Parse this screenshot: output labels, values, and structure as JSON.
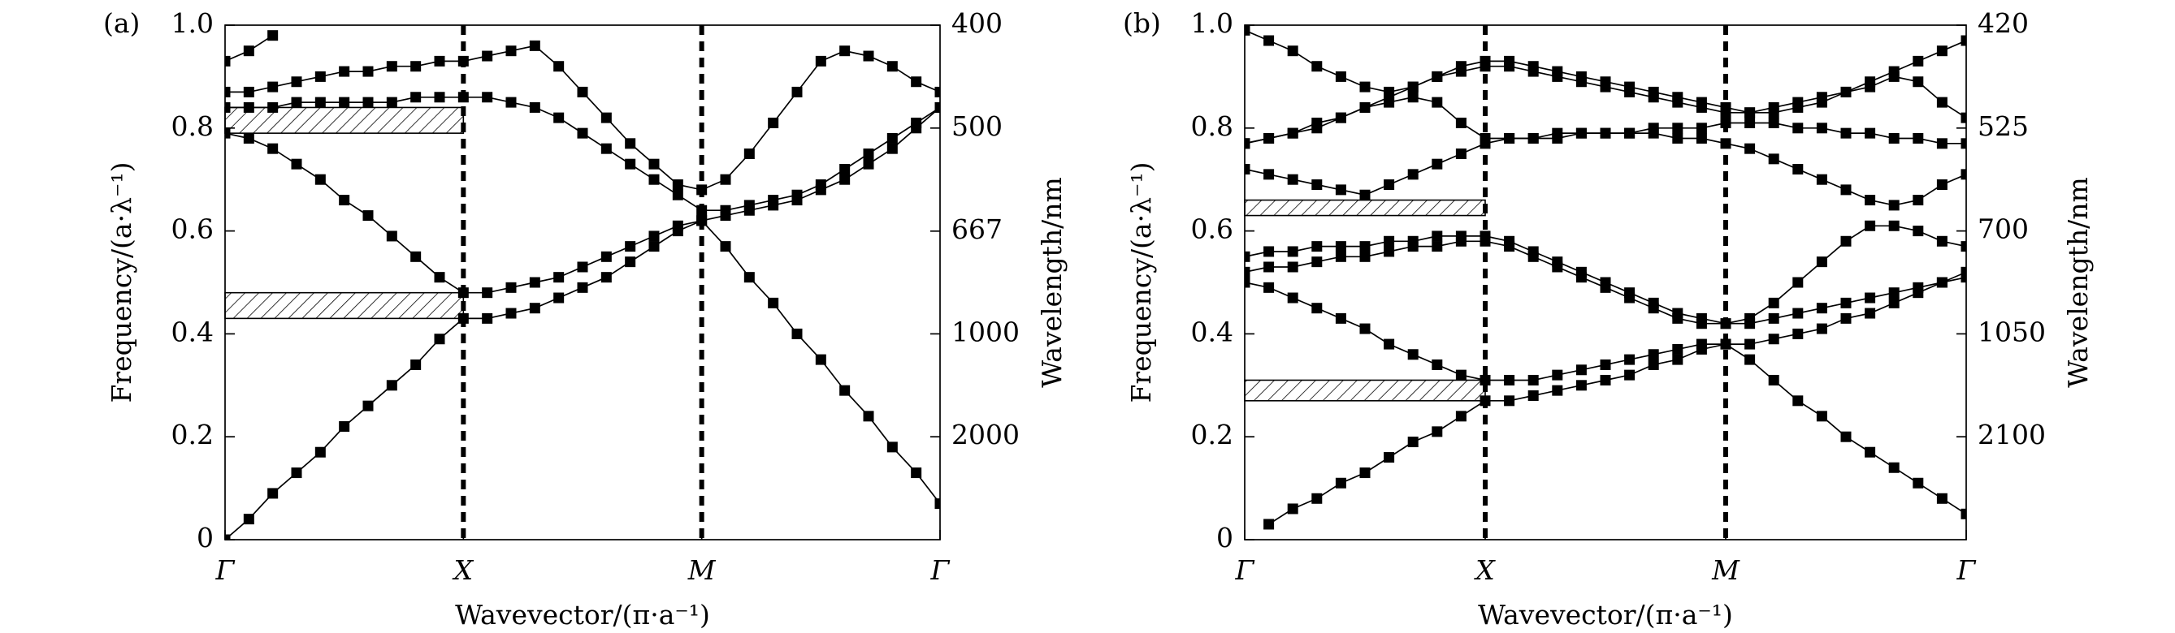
{
  "chart_data": [
    {
      "type": "line",
      "label": "(a)",
      "markers": "square",
      "xlabel": "Wavevector/(π·a⁻¹)",
      "ylabel": "Frequency/(a·λ⁻¹)",
      "y2label": "Wavelength/nm",
      "x": [
        0,
        0.1,
        0.2,
        0.3,
        0.4,
        0.5,
        0.6,
        0.7,
        0.8,
        0.9,
        1.0,
        1.1,
        1.2,
        1.3,
        1.4,
        1.5,
        1.6,
        1.7,
        1.8,
        1.9,
        2.0,
        2.1,
        2.2,
        2.3,
        2.4,
        2.5,
        2.6,
        2.7,
        2.8,
        2.9,
        3.0
      ],
      "xlim": [
        0,
        3
      ],
      "xticks": [
        {
          "value": 0,
          "label": "Γ"
        },
        {
          "value": 1,
          "label": "X"
        },
        {
          "value": 2,
          "label": "M"
        },
        {
          "value": 3,
          "label": "Γ"
        }
      ],
      "ylim": [
        0,
        1
      ],
      "yticks": [
        0,
        0.2,
        0.4,
        0.6,
        0.8,
        {
          "value": 1,
          "label": "1.0"
        }
      ],
      "y2_scale": "reciprocal",
      "y2lim": [
        null,
        400
      ],
      "y2ticks": [
        400,
        500,
        667,
        1000,
        2000
      ],
      "gaps": [
        [
          0.43,
          0.48
        ],
        [
          0.79,
          0.84
        ]
      ],
      "series": [
        {
          "color": "#000000",
          "values": [
            0,
            0.04,
            0.09,
            0.13,
            0.17,
            0.22,
            0.26,
            0.3,
            0.34,
            0.39,
            0.43,
            0.43,
            0.44,
            0.45,
            0.47,
            0.49,
            0.51,
            0.54,
            0.57,
            0.6,
            0.62,
            0.57,
            0.51,
            0.46,
            0.4,
            0.35,
            0.29,
            0.24,
            0.18,
            0.13,
            0.07
          ]
        },
        {
          "color": "#000000",
          "values": [
            0.79,
            0.78,
            0.76,
            0.73,
            0.7,
            0.66,
            0.63,
            0.59,
            0.55,
            0.51,
            0.48,
            0.48,
            0.49,
            0.5,
            0.51,
            0.53,
            0.55,
            0.57,
            0.59,
            0.61,
            0.62,
            0.63,
            0.64,
            0.65,
            0.66,
            0.68,
            0.7,
            0.73,
            0.76,
            0.8,
            0.84
          ]
        },
        {
          "color": "#000000",
          "values": [
            0.84,
            0.84,
            0.84,
            0.85,
            0.85,
            0.85,
            0.85,
            0.85,
            0.86,
            0.86,
            0.86,
            0.86,
            0.85,
            0.84,
            0.82,
            0.79,
            0.76,
            0.73,
            0.7,
            0.67,
            0.64,
            0.64,
            0.65,
            0.66,
            0.67,
            0.69,
            0.72,
            0.75,
            0.78,
            0.81,
            0.84
          ]
        },
        {
          "color": "#000000",
          "values": [
            0.87,
            0.87,
            0.88,
            0.89,
            0.9,
            0.91,
            0.91,
            0.92,
            0.92,
            0.93,
            0.93,
            0.94,
            0.95,
            0.96,
            0.92,
            0.87,
            0.82,
            0.77,
            0.73,
            0.69,
            0.68,
            0.7,
            0.75,
            0.81,
            0.87,
            0.93,
            0.95,
            0.94,
            0.92,
            0.89,
            0.87
          ]
        },
        {
          "color": "#000000",
          "values": [
            0.93,
            0.95,
            0.98,
            null,
            null,
            null,
            null,
            null,
            null,
            null,
            null,
            null,
            null,
            null,
            null,
            null,
            null,
            null,
            null,
            null,
            null,
            null,
            null,
            null,
            null,
            null,
            null,
            null,
            null,
            null,
            null
          ]
        }
      ]
    },
    {
      "type": "line",
      "label": "(b)",
      "markers": "square",
      "xlabel": "Wavevector/(π·a⁻¹)",
      "ylabel": "Frequency/(a·λ⁻¹)",
      "y2label": "Wavelength/nm",
      "x": [
        0,
        0.1,
        0.2,
        0.3,
        0.4,
        0.5,
        0.6,
        0.7,
        0.8,
        0.9,
        1.0,
        1.1,
        1.2,
        1.3,
        1.4,
        1.5,
        1.6,
        1.7,
        1.8,
        1.9,
        2.0,
        2.1,
        2.2,
        2.3,
        2.4,
        2.5,
        2.6,
        2.7,
        2.8,
        2.9,
        3.0
      ],
      "xlim": [
        0,
        3
      ],
      "xticks": [
        {
          "value": 0,
          "label": "Γ"
        },
        {
          "value": 1,
          "label": "X"
        },
        {
          "value": 2,
          "label": "M"
        },
        {
          "value": 3,
          "label": "Γ"
        }
      ],
      "ylim": [
        0,
        1
      ],
      "yticks": [
        0,
        0.2,
        0.4,
        0.6,
        0.8,
        {
          "value": 1,
          "label": "1.0"
        }
      ],
      "y2_scale": "reciprocal",
      "y2lim": [
        null,
        420
      ],
      "y2ticks": [
        420,
        525,
        700,
        1050,
        2100
      ],
      "gaps": [
        [
          0.27,
          0.31
        ],
        [
          0.63,
          0.66
        ]
      ],
      "series": [
        {
          "color": "#000000",
          "values": [
            null,
            0.03,
            0.06,
            0.08,
            0.11,
            0.13,
            0.16,
            0.19,
            0.21,
            0.24,
            0.27,
            0.27,
            0.28,
            0.29,
            0.3,
            0.31,
            0.32,
            0.34,
            0.35,
            0.37,
            0.38,
            0.35,
            0.31,
            0.27,
            0.24,
            0.2,
            0.17,
            0.14,
            0.11,
            0.08,
            0.05
          ]
        },
        {
          "color": "#000000",
          "values": [
            0.5,
            0.49,
            0.47,
            0.45,
            0.43,
            0.41,
            0.38,
            0.36,
            0.34,
            0.32,
            0.31,
            0.31,
            0.31,
            0.32,
            0.33,
            0.34,
            0.35,
            0.36,
            0.37,
            0.38,
            0.38,
            0.38,
            0.39,
            0.4,
            0.41,
            0.43,
            0.44,
            0.46,
            0.48,
            0.5,
            0.52
          ]
        },
        {
          "color": "#000000",
          "values": [
            0.52,
            0.53,
            0.53,
            0.54,
            0.55,
            0.55,
            0.56,
            0.57,
            0.57,
            0.58,
            0.58,
            0.57,
            0.55,
            0.53,
            0.51,
            0.49,
            0.47,
            0.45,
            0.43,
            0.42,
            0.42,
            0.43,
            0.46,
            0.5,
            0.54,
            0.58,
            0.61,
            0.61,
            0.6,
            0.58,
            0.57
          ]
        },
        {
          "color": "#000000",
          "values": [
            0.55,
            0.56,
            0.56,
            0.57,
            0.57,
            0.57,
            0.58,
            0.58,
            0.59,
            0.59,
            0.59,
            0.58,
            0.56,
            0.54,
            0.52,
            0.5,
            0.48,
            0.46,
            0.44,
            0.43,
            0.42,
            0.42,
            0.43,
            0.44,
            0.45,
            0.46,
            0.47,
            0.48,
            0.49,
            0.5,
            0.51
          ]
        },
        {
          "color": "#000000",
          "values": [
            0.72,
            0.71,
            0.7,
            0.69,
            0.68,
            0.67,
            0.69,
            0.71,
            0.73,
            0.75,
            0.77,
            0.78,
            0.78,
            0.78,
            0.79,
            0.79,
            0.79,
            0.79,
            0.78,
            0.78,
            0.77,
            0.76,
            0.74,
            0.72,
            0.7,
            0.68,
            0.66,
            0.65,
            0.66,
            0.69,
            0.71
          ]
        },
        {
          "color": "#000000",
          "values": [
            0.77,
            0.78,
            0.79,
            0.81,
            0.82,
            0.84,
            0.85,
            0.86,
            0.85,
            0.81,
            0.78,
            0.78,
            0.78,
            0.79,
            0.79,
            0.79,
            0.79,
            0.8,
            0.8,
            0.8,
            0.81,
            0.81,
            0.81,
            0.8,
            0.8,
            0.79,
            0.79,
            0.78,
            0.78,
            0.77,
            0.77
          ]
        },
        {
          "color": "#000000",
          "values": [
            0.77,
            0.78,
            0.79,
            0.8,
            0.82,
            0.84,
            0.86,
            0.88,
            0.9,
            0.91,
            0.92,
            0.92,
            0.91,
            0.9,
            0.89,
            0.88,
            0.87,
            0.86,
            0.85,
            0.84,
            0.83,
            0.83,
            0.84,
            0.85,
            0.86,
            0.87,
            0.88,
            0.9,
            0.89,
            0.85,
            0.82
          ]
        },
        {
          "color": "#000000",
          "values": [
            0.99,
            0.97,
            0.95,
            0.92,
            0.9,
            0.88,
            0.87,
            0.88,
            0.9,
            0.92,
            0.93,
            0.93,
            0.92,
            0.91,
            0.9,
            0.89,
            0.88,
            0.87,
            0.86,
            0.85,
            0.84,
            0.83,
            0.83,
            0.84,
            0.85,
            0.87,
            0.89,
            0.91,
            0.93,
            0.95,
            0.97
          ]
        }
      ]
    }
  ]
}
